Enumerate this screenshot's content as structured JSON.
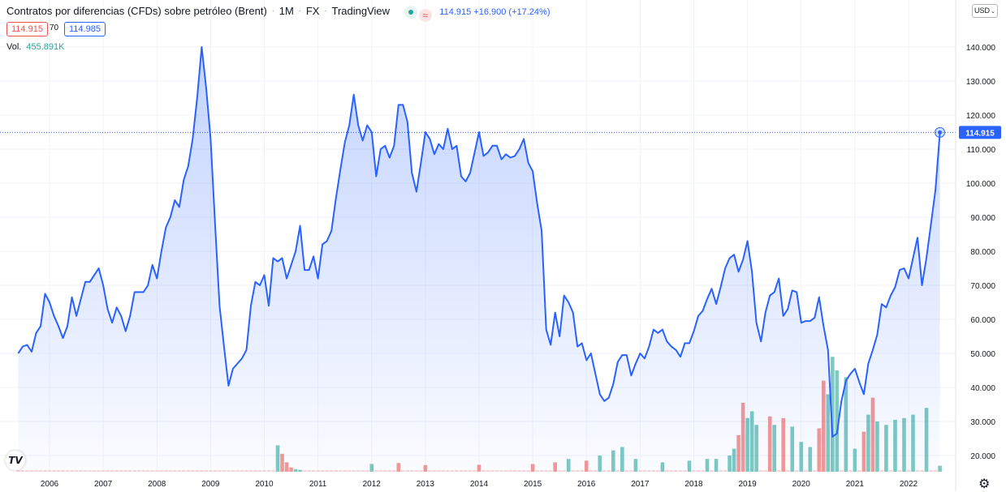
{
  "header": {
    "title": "Contratos por diferencias (CFDs) sobre petróleo (Brent)",
    "interval": "1M",
    "exchange": "FX",
    "source": "TradingView",
    "last_price": "114.915",
    "change": "+16.900 (+17.24%)",
    "bid": "114.915",
    "spread": "70",
    "ask": "114.985",
    "volume_label": "Vol.",
    "volume_value": "455.891K",
    "currency": "USD"
  },
  "colors": {
    "line": "#2962ff",
    "up": "#26a69a",
    "down": "#ef5350",
    "grid": "#f0f3fa"
  },
  "icons": {
    "logo": "tradingview-logo-icon",
    "settings": "gear-icon",
    "currency_menu": "chevron-down-icon"
  },
  "chart_data": {
    "type": "area",
    "x_ticks": [
      "2006",
      "2007",
      "2008",
      "2009",
      "2010",
      "2011",
      "2012",
      "2013",
      "2014",
      "2015",
      "2016",
      "2017",
      "2018",
      "2019",
      "2020",
      "2021",
      "2022"
    ],
    "y_ticks": [
      "20.000",
      "30.000",
      "40.000",
      "50.000",
      "60.000",
      "70.000",
      "80.000",
      "90.000",
      "100.000",
      "110.000",
      "120.000",
      "130.000",
      "140.000"
    ],
    "ylim": [
      15,
      150
    ],
    "grid": true,
    "price_label": "114.915",
    "series": [
      {
        "kind": "price",
        "points": [
          [
            "2005-06",
            50
          ],
          [
            "2005-07",
            52
          ],
          [
            "2005-08",
            52.5
          ],
          [
            "2005-09",
            50.5
          ],
          [
            "2005-10",
            56
          ],
          [
            "2005-11",
            58
          ],
          [
            "2005-12",
            67.5
          ],
          [
            "2006-01",
            65
          ],
          [
            "2006-02",
            61
          ],
          [
            "2006-03",
            58
          ],
          [
            "2006-04",
            54.5
          ],
          [
            "2006-05",
            58
          ],
          [
            "2006-06",
            66.5
          ],
          [
            "2006-07",
            61
          ],
          [
            "2006-08",
            66
          ],
          [
            "2006-09",
            71
          ],
          [
            "2006-10",
            71
          ],
          [
            "2006-11",
            73
          ],
          [
            "2006-12",
            75
          ],
          [
            "2007-01",
            70
          ],
          [
            "2007-02",
            63
          ],
          [
            "2007-03",
            59
          ],
          [
            "2007-04",
            63.5
          ],
          [
            "2007-05",
            61
          ],
          [
            "2007-06",
            56.5
          ],
          [
            "2007-07",
            61
          ],
          [
            "2007-08",
            68
          ],
          [
            "2007-09",
            68
          ],
          [
            "2007-10",
            68
          ],
          [
            "2007-11",
            70
          ],
          [
            "2007-12",
            76
          ],
          [
            "2008-01",
            72
          ],
          [
            "2008-02",
            80
          ],
          [
            "2008-03",
            87
          ],
          [
            "2008-04",
            90
          ],
          [
            "2008-05",
            95
          ],
          [
            "2008-06",
            93
          ],
          [
            "2008-07",
            101
          ],
          [
            "2008-08",
            105
          ],
          [
            "2008-09",
            113
          ],
          [
            "2008-10",
            125
          ],
          [
            "2008-11",
            140
          ],
          [
            "2008-12",
            128
          ],
          [
            "2009-01",
            113
          ],
          [
            "2009-02",
            88
          ],
          [
            "2009-03",
            64
          ],
          [
            "2009-04",
            52
          ],
          [
            "2009-05",
            40.5
          ],
          [
            "2009-06",
            45.5
          ],
          [
            "2009-07",
            47
          ],
          [
            "2009-08",
            48.5
          ],
          [
            "2009-09",
            51
          ],
          [
            "2009-10",
            64
          ],
          [
            "2009-11",
            71
          ],
          [
            "2009-12",
            70
          ],
          [
            "2010-01",
            73
          ],
          [
            "2010-02",
            64
          ],
          [
            "2010-03",
            78
          ],
          [
            "2010-04",
            77
          ],
          [
            "2010-05",
            78
          ],
          [
            "2010-06",
            72
          ],
          [
            "2010-07",
            76
          ],
          [
            "2010-08",
            80
          ],
          [
            "2010-09",
            87.5
          ],
          [
            "2010-10",
            74.5
          ],
          [
            "2010-11",
            74.5
          ],
          [
            "2010-12",
            78.5
          ],
          [
            "2011-01",
            72
          ],
          [
            "2011-02",
            82
          ],
          [
            "2011-03",
            83
          ],
          [
            "2011-04",
            86
          ],
          [
            "2011-05",
            95.5
          ],
          [
            "2011-06",
            104
          ],
          [
            "2011-07",
            112
          ],
          [
            "2011-08",
            117
          ],
          [
            "2011-09",
            126
          ],
          [
            "2011-10",
            117
          ],
          [
            "2011-11",
            112.5
          ],
          [
            "2011-12",
            117
          ],
          [
            "2012-01",
            115
          ],
          [
            "2012-02",
            102
          ],
          [
            "2012-03",
            110
          ],
          [
            "2012-04",
            111
          ],
          [
            "2012-05",
            107.5
          ],
          [
            "2012-06",
            111
          ],
          [
            "2012-07",
            123
          ],
          [
            "2012-08",
            123
          ],
          [
            "2012-09",
            118
          ],
          [
            "2012-10",
            103
          ],
          [
            "2012-11",
            97.5
          ],
          [
            "2012-12",
            106
          ],
          [
            "2013-01",
            115
          ],
          [
            "2013-02",
            113
          ],
          [
            "2013-03",
            108.5
          ],
          [
            "2013-04",
            111.5
          ],
          [
            "2013-05",
            110
          ],
          [
            "2013-06",
            116
          ],
          [
            "2013-07",
            110
          ],
          [
            "2013-08",
            111
          ],
          [
            "2013-09",
            102
          ],
          [
            "2013-10",
            100.5
          ],
          [
            "2013-11",
            103
          ],
          [
            "2013-12",
            109
          ],
          [
            "2014-01",
            115
          ],
          [
            "2014-02",
            108
          ],
          [
            "2014-03",
            109
          ],
          [
            "2014-04",
            111
          ],
          [
            "2014-05",
            111
          ],
          [
            "2014-06",
            107
          ],
          [
            "2014-07",
            108.5
          ],
          [
            "2014-08",
            107.5
          ],
          [
            "2014-09",
            108
          ],
          [
            "2014-10",
            110
          ],
          [
            "2014-11",
            113
          ],
          [
            "2014-12",
            106
          ],
          [
            "2015-01",
            103.5
          ],
          [
            "2015-02",
            94
          ],
          [
            "2015-03",
            86
          ],
          [
            "2015-04",
            57
          ],
          [
            "2015-05",
            52.5
          ],
          [
            "2015-06",
            62
          ],
          [
            "2015-07",
            55
          ],
          [
            "2015-08",
            67
          ],
          [
            "2015-09",
            65
          ],
          [
            "2015-10",
            62
          ],
          [
            "2015-11",
            52
          ],
          [
            "2015-12",
            53
          ],
          [
            "2016-01",
            48
          ],
          [
            "2016-02",
            50
          ],
          [
            "2016-03",
            44
          ],
          [
            "2016-04",
            38
          ],
          [
            "2016-05",
            36
          ],
          [
            "2016-06",
            37
          ],
          [
            "2016-07",
            41
          ],
          [
            "2016-08",
            47.5
          ],
          [
            "2016-09",
            49.5
          ],
          [
            "2016-10",
            49.5
          ],
          [
            "2016-11",
            43.5
          ],
          [
            "2016-12",
            47
          ],
          [
            "2017-01",
            50
          ],
          [
            "2017-02",
            48.5
          ],
          [
            "2017-03",
            52
          ],
          [
            "2017-04",
            57
          ],
          [
            "2017-05",
            56
          ],
          [
            "2017-06",
            57
          ],
          [
            "2017-07",
            53.5
          ],
          [
            "2017-08",
            52
          ],
          [
            "2017-09",
            51
          ],
          [
            "2017-10",
            49
          ],
          [
            "2017-11",
            53
          ],
          [
            "2017-12",
            53
          ],
          [
            "2018-01",
            56.5
          ],
          [
            "2018-02",
            61
          ],
          [
            "2018-03",
            62.5
          ],
          [
            "2018-04",
            66
          ],
          [
            "2018-05",
            69
          ],
          [
            "2018-06",
            64.5
          ],
          [
            "2018-07",
            69.5
          ],
          [
            "2018-08",
            75
          ],
          [
            "2018-09",
            78
          ],
          [
            "2018-10",
            79
          ],
          [
            "2018-11",
            74
          ],
          [
            "2018-12",
            77.5
          ],
          [
            "2019-01",
            83
          ],
          [
            "2019-02",
            74
          ],
          [
            "2019-03",
            59
          ],
          [
            "2019-04",
            53.5
          ],
          [
            "2019-05",
            62
          ],
          [
            "2019-06",
            67
          ],
          [
            "2019-07",
            68
          ],
          [
            "2019-08",
            72
          ],
          [
            "2019-09",
            61
          ],
          [
            "2019-10",
            63
          ],
          [
            "2019-11",
            68.5
          ],
          [
            "2019-12",
            68
          ],
          [
            "2020-01",
            59
          ],
          [
            "2020-02",
            59.5
          ],
          [
            "2020-03",
            59.5
          ],
          [
            "2020-04",
            60.5
          ],
          [
            "2020-05",
            66.5
          ],
          [
            "2020-06",
            58
          ],
          [
            "2020-07",
            51
          ],
          [
            "2020-08",
            25.5
          ],
          [
            "2020-09",
            26.5
          ],
          [
            "2020-10",
            36
          ],
          [
            "2020-11",
            42
          ],
          [
            "2020-12",
            44
          ],
          [
            "2021-01",
            45.5
          ],
          [
            "2021-02",
            41.5
          ],
          [
            "2021-03",
            38
          ],
          [
            "2021-04",
            47
          ],
          [
            "2021-05",
            51
          ],
          [
            "2021-06",
            55.5
          ],
          [
            "2021-07",
            64.5
          ],
          [
            "2021-08",
            63.5
          ],
          [
            "2021-09",
            67
          ],
          [
            "2021-10",
            69.5
          ],
          [
            "2021-11",
            74.5
          ],
          [
            "2021-12",
            75
          ],
          [
            "2022-01",
            72
          ],
          [
            "2022-02",
            78
          ],
          [
            "2022-03",
            84
          ],
          [
            "2022-04",
            70
          ],
          [
            "2022-05",
            78
          ],
          [
            "2022-06",
            88
          ],
          [
            "2022-07",
            98
          ],
          [
            "2022-08",
            114.915
          ]
        ]
      },
      {
        "kind": "volume",
        "bars": [
          [
            "2010-04",
            23,
            "up"
          ],
          [
            "2010-05",
            20.5,
            "down"
          ],
          [
            "2010-06",
            18,
            "down"
          ],
          [
            "2010-07",
            16.5,
            "down"
          ],
          [
            "2010-08",
            16,
            "up"
          ],
          [
            "2010-09",
            15.8,
            "up"
          ],
          [
            "2012-01",
            17.5,
            "up"
          ],
          [
            "2012-07",
            17.8,
            "down"
          ],
          [
            "2013-01",
            17.2,
            "down"
          ],
          [
            "2014-01",
            17.3,
            "down"
          ],
          [
            "2015-01",
            17.5,
            "down"
          ],
          [
            "2015-06",
            18,
            "down"
          ],
          [
            "2015-09",
            19,
            "up"
          ],
          [
            "2016-01",
            18.5,
            "down"
          ],
          [
            "2016-04",
            20,
            "up"
          ],
          [
            "2016-07",
            21.5,
            "up"
          ],
          [
            "2016-09",
            22.5,
            "up"
          ],
          [
            "2016-12",
            19,
            "up"
          ],
          [
            "2017-06",
            18,
            "up"
          ],
          [
            "2017-12",
            18.5,
            "up"
          ],
          [
            "2018-04",
            19,
            "up"
          ],
          [
            "2018-06",
            19,
            "up"
          ],
          [
            "2018-09",
            20,
            "up"
          ],
          [
            "2018-10",
            22,
            "up"
          ],
          [
            "2018-11",
            26,
            "down"
          ],
          [
            "2018-12",
            35.5,
            "down"
          ],
          [
            "2019-01",
            31,
            "up"
          ],
          [
            "2019-02",
            33,
            "up"
          ],
          [
            "2019-03",
            29,
            "up"
          ],
          [
            "2019-06",
            31.5,
            "down"
          ],
          [
            "2019-07",
            29,
            "up"
          ],
          [
            "2019-09",
            31,
            "down"
          ],
          [
            "2019-11",
            28.5,
            "up"
          ],
          [
            "2020-01",
            24,
            "up"
          ],
          [
            "2020-03",
            22.5,
            "up"
          ],
          [
            "2020-05",
            28,
            "down"
          ],
          [
            "2020-06",
            42,
            "down"
          ],
          [
            "2020-07",
            38,
            "up"
          ],
          [
            "2020-08",
            49,
            "up"
          ],
          [
            "2020-09",
            45,
            "up"
          ],
          [
            "2020-11",
            43,
            "up"
          ],
          [
            "2021-01",
            22,
            "up"
          ],
          [
            "2021-03",
            27,
            "down"
          ],
          [
            "2021-04",
            32,
            "up"
          ],
          [
            "2021-05",
            37,
            "down"
          ],
          [
            "2021-06",
            30,
            "up"
          ],
          [
            "2021-08",
            29,
            "up"
          ],
          [
            "2021-10",
            30.5,
            "up"
          ],
          [
            "2021-12",
            31,
            "up"
          ],
          [
            "2022-02",
            32,
            "up"
          ],
          [
            "2022-05",
            34,
            "up"
          ],
          [
            "2022-08",
            17,
            "up"
          ]
        ]
      }
    ]
  }
}
